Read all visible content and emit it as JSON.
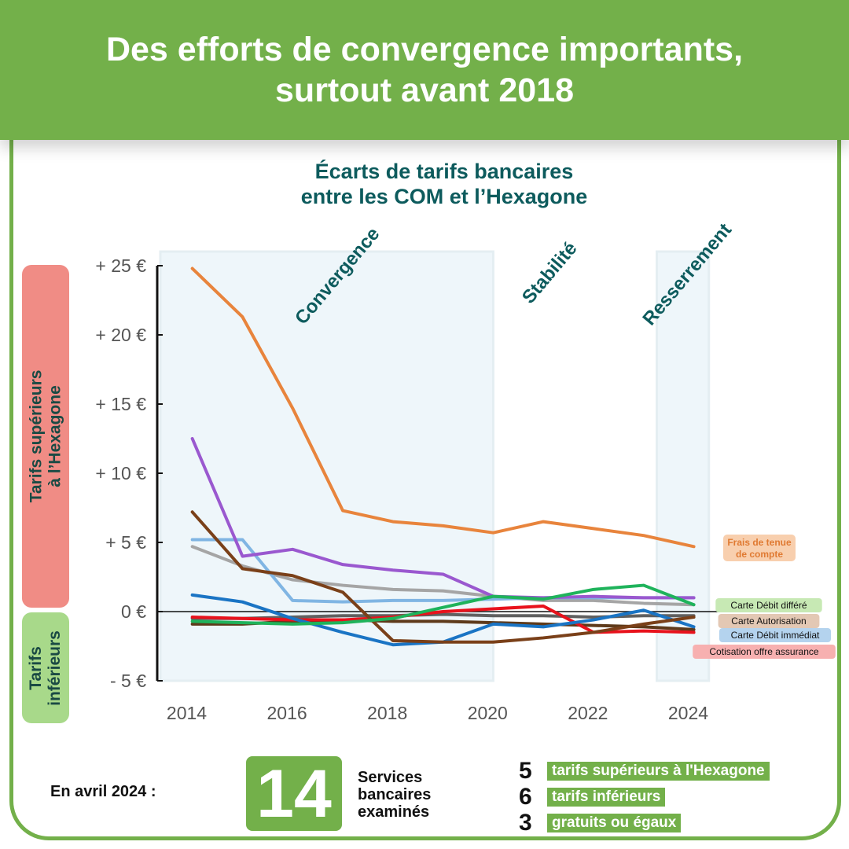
{
  "header": {
    "line1": "Des efforts de convergence importants,",
    "line2": "surtout avant 2018"
  },
  "chart_title": {
    "line1": "Écarts de tarifs bancaires",
    "line2": "entre les COM et l’Hexagone"
  },
  "side_labels": {
    "superieurs_line1": "Tarifs supérieurs",
    "superieurs_line2": "à l’Hexagone",
    "inferieurs_line1": "Tarifs",
    "inferieurs_line2": "inférieurs"
  },
  "colors": {
    "brand_green": "#73b04a",
    "title_teal": "#0d5b5d",
    "pill_red": "#f08c85",
    "pill_green": "#a8d98a",
    "phase_shading": "#eef6fa"
  },
  "chart_data": {
    "type": "line",
    "title": "Écarts de tarifs bancaires entre les COM et l’Hexagone",
    "xlabel": "",
    "ylabel": "",
    "xlim": [
      2013.6,
      2025.2
    ],
    "ylim": [
      -5,
      25
    ],
    "x_ticks": [
      2014,
      2016,
      2018,
      2020,
      2022,
      2024
    ],
    "y_ticks": [
      -5,
      0,
      5,
      10,
      15,
      20,
      25
    ],
    "y_tick_labels": [
      "- 5 €",
      "0 €",
      "+ 5 €",
      "+ 10 €",
      "+ 15 €",
      "+ 20 €",
      "+ 25 €"
    ],
    "grid": false,
    "phases": [
      {
        "label": "Convergence",
        "x_start": 2013.6,
        "x_end": 2020.3,
        "shaded": true
      },
      {
        "label": "Stabilité",
        "x_start": 2020.3,
        "x_end": 2023.5,
        "shaded": false
      },
      {
        "label": "Resserrement",
        "x_start": 2023.5,
        "x_end": 2024.6,
        "shaded": true
      }
    ],
    "series": [
      {
        "name": "Frais de tenue de compte",
        "color": "#e8843c",
        "label_bg": "#f8cfae",
        "label_color": "#e07a32",
        "label_line1": "Frais de tenue",
        "label_line2": "de compte",
        "x": [
          2014,
          2015,
          2016,
          2017,
          2018,
          2019,
          2020,
          2021,
          2022,
          2023,
          2024
        ],
        "y": [
          24.8,
          21.3,
          14.7,
          7.3,
          6.5,
          6.2,
          5.7,
          6.5,
          6.0,
          5.5,
          4.7
        ]
      },
      {
        "name": "Carte Débit différé",
        "color": "#1fb35b",
        "label_bg": "#c7e9b4",
        "label_color": "#111111",
        "x": [
          2014,
          2015,
          2016,
          2017,
          2018,
          2019,
          2020,
          2021,
          2022,
          2023,
          2024
        ],
        "y": [
          -0.7,
          -0.8,
          -0.9,
          -0.8,
          -0.5,
          0.3,
          1.1,
          0.9,
          1.6,
          1.9,
          0.5
        ]
      },
      {
        "name": "Carte Autorisation",
        "color": "#7a4019",
        "label_bg": "#e3c8b4",
        "label_color": "#111111",
        "x": [
          2014,
          2015,
          2016,
          2017,
          2018,
          2019,
          2020,
          2021,
          2022,
          2023,
          2024
        ],
        "y": [
          7.2,
          3.1,
          2.6,
          1.4,
          -2.1,
          -2.2,
          -2.2,
          -1.9,
          -1.5,
          -0.9,
          -0.4
        ]
      },
      {
        "name": "Carte Débit immédiat",
        "color": "#1a74c4",
        "label_bg": "#b4d3ee",
        "label_color": "#111111",
        "x": [
          2014,
          2015,
          2016,
          2017,
          2018,
          2019,
          2020,
          2021,
          2022,
          2023,
          2024
        ],
        "y": [
          1.2,
          0.7,
          -0.5,
          -1.5,
          -2.4,
          -2.2,
          -0.9,
          -1.1,
          -0.6,
          0.1,
          -1.1
        ]
      },
      {
        "name": "Cotisation offre assurance",
        "color": "#e8121c",
        "label_bg": "#f7b0b0",
        "label_color": "#111111",
        "x": [
          2014,
          2015,
          2016,
          2017,
          2018,
          2019,
          2020,
          2021,
          2022,
          2023,
          2024
        ],
        "y": [
          -0.4,
          -0.5,
          -0.6,
          -0.6,
          -0.4,
          0.0,
          0.2,
          0.4,
          -1.5,
          -1.4,
          -1.5
        ]
      },
      {
        "name": "",
        "color": "#9a58cf",
        "x": [
          2014,
          2015,
          2016,
          2017,
          2018,
          2019,
          2020,
          2021,
          2022,
          2023,
          2024
        ],
        "y": [
          12.5,
          4.0,
          4.5,
          3.4,
          3.0,
          2.7,
          1.1,
          1.0,
          1.1,
          1.0,
          1.0
        ]
      },
      {
        "name": "",
        "color": "#80b5e3",
        "x": [
          2014,
          2015,
          2016,
          2017,
          2018,
          2019,
          2020,
          2021,
          2022,
          2023,
          2024
        ],
        "y": [
          5.2,
          5.2,
          0.8,
          0.7,
          0.8,
          0.8,
          0.9,
          1.0,
          1.0,
          1.0,
          1.0
        ]
      },
      {
        "name": "",
        "color": "#a5a5a5",
        "x": [
          2014,
          2015,
          2016,
          2017,
          2018,
          2019,
          2020,
          2021,
          2022,
          2023,
          2024
        ],
        "y": [
          4.7,
          3.3,
          2.3,
          1.9,
          1.6,
          1.5,
          1.1,
          0.8,
          0.8,
          0.6,
          0.5
        ]
      },
      {
        "name": "",
        "color": "#5e3a1a",
        "x": [
          2014,
          2015,
          2016,
          2017,
          2018,
          2019,
          2020,
          2021,
          2022,
          2023,
          2024
        ],
        "y": [
          -0.9,
          -0.9,
          -0.7,
          -0.6,
          -0.7,
          -0.7,
          -0.8,
          -0.9,
          -1.0,
          -1.1,
          -1.3
        ]
      },
      {
        "name": "",
        "color": "#606060",
        "x": [
          2014,
          2015,
          2016,
          2017,
          2018,
          2019,
          2020,
          2021,
          2022,
          2023,
          2024
        ],
        "y": [
          -0.5,
          -0.5,
          -0.4,
          -0.3,
          -0.3,
          -0.2,
          -0.3,
          -0.3,
          -0.4,
          -0.3,
          -0.3
        ]
      }
    ]
  },
  "summary": {
    "intro": "En avril 2024 :",
    "total": "14",
    "total_label_line1": "Services",
    "total_label_line2": "bancaires",
    "total_label_line3": "examinés",
    "stats": [
      {
        "count": "5",
        "label": "tarifs supérieurs à l'Hexagone"
      },
      {
        "count": "6",
        "label": "tarifs inférieurs"
      },
      {
        "count": "3",
        "label": "gratuits ou égaux"
      }
    ]
  }
}
